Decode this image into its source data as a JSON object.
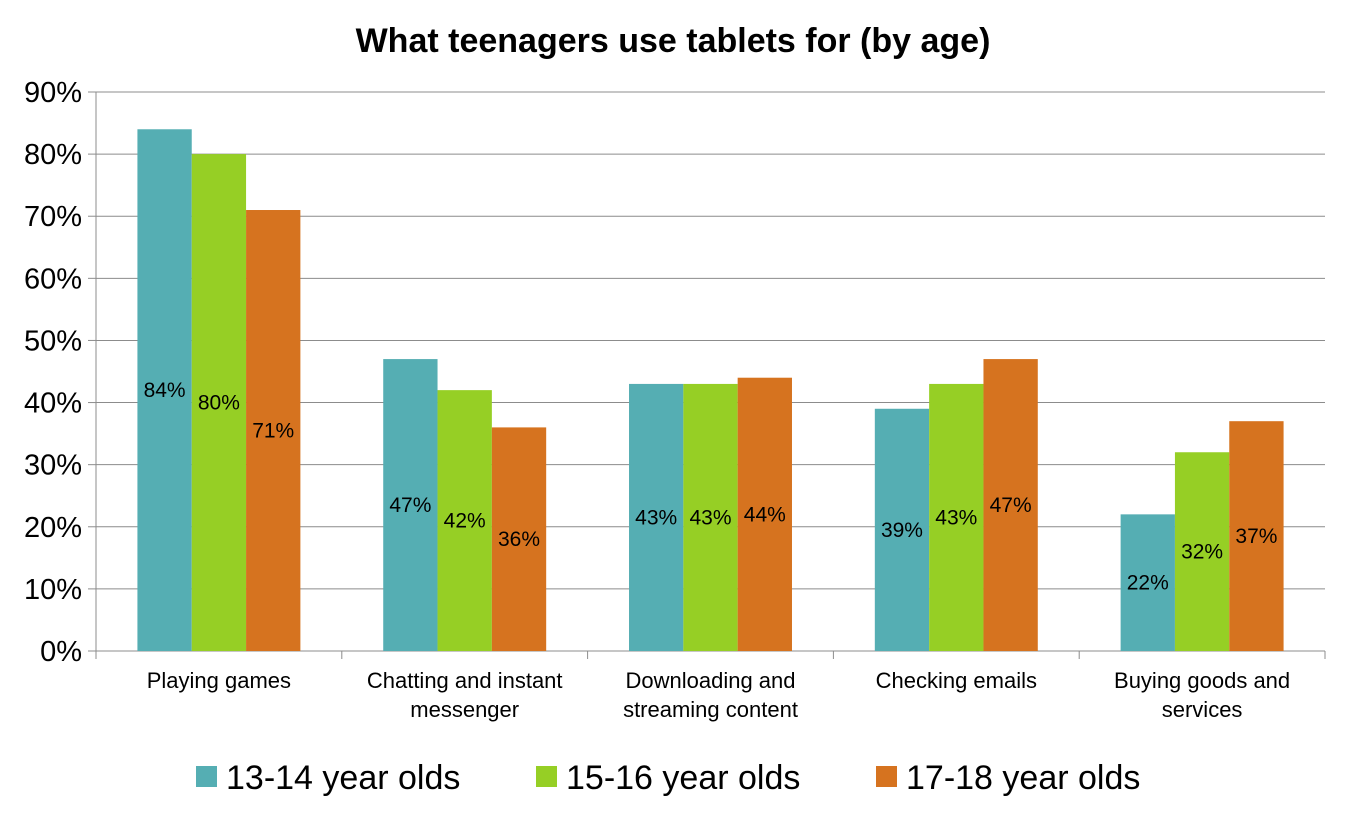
{
  "chart_data": {
    "type": "bar",
    "title": "What teenagers use tablets for (by age)",
    "xlabel": "",
    "ylabel": "",
    "ylim": [
      0,
      90
    ],
    "ytick_step": 10,
    "ytick_labels": [
      "0%",
      "10%",
      "20%",
      "30%",
      "40%",
      "50%",
      "60%",
      "70%",
      "80%",
      "90%"
    ],
    "grid": true,
    "legend_position": "bottom",
    "categories": [
      [
        "Playing games"
      ],
      [
        "Chatting and instant",
        "messenger"
      ],
      [
        "Downloading and",
        "streaming content"
      ],
      [
        "Checking emails"
      ],
      [
        "Buying goods and",
        "services"
      ]
    ],
    "series": [
      {
        "name": "13-14 year olds",
        "color": "#55aeb3",
        "values": [
          84,
          47,
          43,
          39,
          22
        ],
        "labels": [
          "84%",
          "47%",
          "43%",
          "39%",
          "22%"
        ]
      },
      {
        "name": "15-16 year olds",
        "color": "#96cf25",
        "values": [
          80,
          42,
          43,
          43,
          32
        ],
        "labels": [
          "80%",
          "42%",
          "43%",
          "43%",
          "32%"
        ]
      },
      {
        "name": "17-18 year olds",
        "color": "#d6731f",
        "values": [
          71,
          36,
          44,
          47,
          37
        ],
        "labels": [
          "71%",
          "36%",
          "44%",
          "47%",
          "37%"
        ]
      }
    ]
  }
}
